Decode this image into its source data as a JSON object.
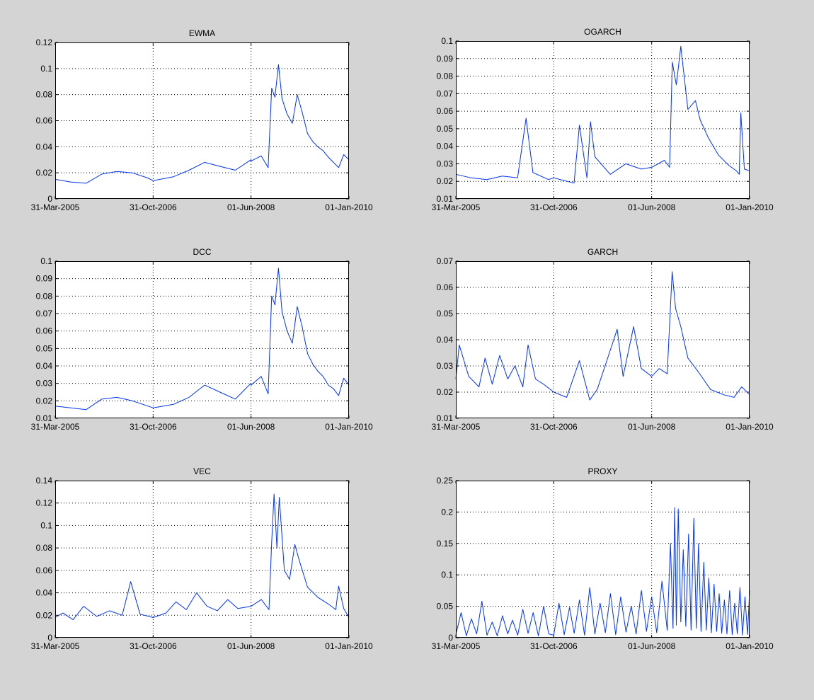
{
  "figure": {
    "background_color": "#d4d4d4",
    "axes_background_color": "#ffffff",
    "line_color": "#0033ff",
    "grid": true,
    "grid_style": "dotted"
  },
  "chart_data": [
    {
      "type": "line",
      "title": "EWMA",
      "x_tick_labels": [
        "31-Mar-2005",
        "31-Oct-2006",
        "01-Jun-2008",
        "01-Jan-2010"
      ],
      "x_range": [
        "31-Mar-2005",
        "01-Jan-2010"
      ],
      "ylim": [
        0,
        0.12
      ],
      "y_tick_labels": [
        "0",
        "0.02",
        "0.04",
        "0.06",
        "0.08",
        "0.1",
        "0.12"
      ],
      "series": [
        {
          "x": [
            "31-Mar-2005",
            "2005-06-30",
            "2005-09-30",
            "2005-12-31",
            "2006-03-31",
            "2006-06-30",
            "2006-09-30",
            "31-Oct-2006",
            "2007-02-28",
            "2007-05-31",
            "2007-08-31",
            "2007-11-30",
            "2008-02-29",
            "2008-05-31",
            "01-Jun-2008",
            "2008-07-31",
            "2008-09-10",
            "2008-10-01",
            "2008-10-20",
            "2008-11-10",
            "2008-12-01",
            "2008-12-31",
            "2009-01-31",
            "2009-03-01",
            "2009-03-31",
            "2009-05-01",
            "2009-06-01",
            "2009-07-01",
            "2009-08-01",
            "2009-09-01",
            "2009-10-01",
            "2009-11-01",
            "2009-12-01",
            "01-Jan-2010"
          ],
          "y": [
            0.015,
            0.013,
            0.012,
            0.019,
            0.021,
            0.02,
            0.016,
            0.014,
            0.017,
            0.022,
            0.028,
            0.025,
            0.022,
            0.03,
            0.029,
            0.033,
            0.024,
            0.085,
            0.078,
            0.103,
            0.077,
            0.065,
            0.058,
            0.08,
            0.066,
            0.05,
            0.044,
            0.04,
            0.037,
            0.032,
            0.028,
            0.024,
            0.034,
            0.03
          ]
        }
      ]
    },
    {
      "type": "line",
      "title": "OGARCH",
      "x_tick_labels": [
        "31-Mar-2005",
        "31-Oct-2006",
        "01-Jun-2008",
        "01-Jan-2010"
      ],
      "x_range": [
        "31-Mar-2005",
        "01-Jan-2010"
      ],
      "ylim": [
        0.01,
        0.1
      ],
      "y_tick_labels": [
        "0.01",
        "0.02",
        "0.03",
        "0.04",
        "0.05",
        "0.06",
        "0.07",
        "0.08",
        "0.09",
        "0.1"
      ],
      "series": [
        {
          "x": [
            "31-Mar-2005",
            "2005-06-30",
            "2005-09-30",
            "2005-12-31",
            "2006-03-31",
            "2006-05-20",
            "2006-06-30",
            "2006-09-30",
            "31-Oct-2006",
            "2007-02-28",
            "2007-04-01",
            "2007-05-15",
            "2007-06-05",
            "2007-07-01",
            "2007-09-30",
            "2007-12-31",
            "2008-03-31",
            "01-Jun-2008",
            "2008-08-15",
            "2008-09-15",
            "2008-10-01",
            "2008-10-25",
            "2008-11-20",
            "2009-01-01",
            "2009-02-15",
            "2009-03-15",
            "2009-05-01",
            "2009-07-01",
            "2009-09-01",
            "2009-10-15",
            "2009-11-01",
            "2009-11-10",
            "2009-12-01",
            "01-Jan-2010"
          ],
          "y": [
            0.024,
            0.022,
            0.021,
            0.023,
            0.022,
            0.056,
            0.025,
            0.021,
            0.022,
            0.019,
            0.052,
            0.022,
            0.054,
            0.034,
            0.024,
            0.03,
            0.027,
            0.028,
            0.032,
            0.028,
            0.088,
            0.075,
            0.097,
            0.061,
            0.066,
            0.055,
            0.045,
            0.035,
            0.029,
            0.026,
            0.024,
            0.059,
            0.027,
            0.026
          ]
        }
      ]
    },
    {
      "type": "line",
      "title": "DCC",
      "x_tick_labels": [
        "31-Mar-2005",
        "31-Oct-2006",
        "01-Jun-2008",
        "01-Jan-2010"
      ],
      "x_range": [
        "31-Mar-2005",
        "01-Jan-2010"
      ],
      "ylim": [
        0.01,
        0.1
      ],
      "y_tick_labels": [
        "0.01",
        "0.02",
        "0.03",
        "0.04",
        "0.05",
        "0.06",
        "0.07",
        "0.08",
        "0.09",
        "0.1"
      ],
      "series": [
        {
          "x": [
            "31-Mar-2005",
            "2005-06-30",
            "2005-09-30",
            "2005-12-31",
            "2006-03-31",
            "2006-06-30",
            "2006-09-30",
            "31-Oct-2006",
            "2007-02-28",
            "2007-05-31",
            "2007-08-31",
            "2007-11-30",
            "2008-02-29",
            "2008-05-31",
            "01-Jun-2008",
            "2008-07-31",
            "2008-09-10",
            "2008-10-01",
            "2008-10-20",
            "2008-11-10",
            "2008-12-01",
            "2008-12-31",
            "2009-01-31",
            "2009-03-01",
            "2009-03-31",
            "2009-05-01",
            "2009-06-01",
            "2009-07-01",
            "2009-08-01",
            "2009-09-01",
            "2009-10-01",
            "2009-11-01",
            "2009-12-01",
            "01-Jan-2010"
          ],
          "y": [
            0.017,
            0.016,
            0.015,
            0.021,
            0.022,
            0.02,
            0.017,
            0.016,
            0.018,
            0.022,
            0.029,
            0.025,
            0.021,
            0.03,
            0.029,
            0.034,
            0.024,
            0.08,
            0.075,
            0.096,
            0.071,
            0.06,
            0.053,
            0.074,
            0.062,
            0.047,
            0.041,
            0.037,
            0.034,
            0.029,
            0.027,
            0.023,
            0.033,
            0.029
          ]
        }
      ]
    },
    {
      "type": "line",
      "title": "GARCH",
      "x_tick_labels": [
        "31-Mar-2005",
        "31-Oct-2006",
        "01-Jun-2008",
        "01-Jan-2010"
      ],
      "x_range": [
        "31-Mar-2005",
        "01-Jan-2010"
      ],
      "ylim": [
        0.01,
        0.07
      ],
      "y_tick_labels": [
        "0.01",
        "0.02",
        "0.03",
        "0.04",
        "0.05",
        "0.06",
        "0.07"
      ],
      "series": [
        {
          "x": [
            "31-Mar-2005",
            "2005-04-20",
            "2005-06-15",
            "2005-08-15",
            "2005-09-20",
            "2005-11-01",
            "2005-12-15",
            "2006-02-01",
            "2006-03-15",
            "2006-05-01",
            "2006-06-01",
            "2006-07-15",
            "2006-09-01",
            "31-Oct-2006",
            "2007-01-15",
            "2007-04-01",
            "2007-06-01",
            "2007-07-15",
            "2007-09-15",
            "2007-11-10",
            "2007-12-15",
            "2008-02-15",
            "2008-04-01",
            "01-Jun-2008",
            "2008-07-15",
            "2008-09-01",
            "2008-09-30",
            "2008-10-20",
            "2008-11-20",
            "2009-01-01",
            "2009-03-01",
            "2009-05-15",
            "2009-08-01",
            "2009-10-01",
            "2009-11-15",
            "01-Jan-2010"
          ],
          "y": [
            0.025,
            0.038,
            0.026,
            0.022,
            0.033,
            0.023,
            0.034,
            0.025,
            0.03,
            0.022,
            0.038,
            0.025,
            0.023,
            0.02,
            0.018,
            0.032,
            0.017,
            0.021,
            0.033,
            0.044,
            0.026,
            0.045,
            0.029,
            0.026,
            0.029,
            0.027,
            0.066,
            0.052,
            0.045,
            0.033,
            0.028,
            0.021,
            0.019,
            0.018,
            0.022,
            0.019
          ]
        }
      ]
    },
    {
      "type": "line",
      "title": "VEC",
      "x_tick_labels": [
        "31-Mar-2005",
        "31-Oct-2006",
        "01-Jun-2008",
        "01-Jan-2010"
      ],
      "x_range": [
        "31-Mar-2005",
        "01-Jan-2010"
      ],
      "ylim": [
        0,
        0.14
      ],
      "y_tick_labels": [
        "0",
        "0.02",
        "0.04",
        "0.06",
        "0.08",
        "0.1",
        "0.12",
        "0.14"
      ],
      "series": [
        {
          "x": [
            "31-Mar-2005",
            "2005-05-15",
            "2005-07-15",
            "2005-09-15",
            "2005-12-01",
            "2006-02-15",
            "2006-05-01",
            "2006-06-20",
            "2006-08-15",
            "31-Oct-2006",
            "2007-01-15",
            "2007-03-15",
            "2007-05-15",
            "2007-07-15",
            "2007-09-15",
            "2007-11-15",
            "2008-01-15",
            "2008-03-15",
            "01-Jun-2008",
            "2008-08-01",
            "2008-09-15",
            "2008-10-01",
            "2008-10-15",
            "2008-11-01",
            "2008-11-15",
            "2008-12-15",
            "2009-01-15",
            "2009-02-15",
            "2009-03-15",
            "2009-05-01",
            "2009-07-01",
            "2009-09-01",
            "2009-10-15",
            "2009-11-01",
            "2009-12-01",
            "01-Jan-2010"
          ],
          "y": [
            0.018,
            0.022,
            0.016,
            0.028,
            0.019,
            0.024,
            0.02,
            0.05,
            0.021,
            0.018,
            0.022,
            0.032,
            0.025,
            0.04,
            0.028,
            0.024,
            0.034,
            0.026,
            0.028,
            0.034,
            0.025,
            0.085,
            0.128,
            0.08,
            0.125,
            0.06,
            0.052,
            0.083,
            0.068,
            0.045,
            0.036,
            0.03,
            0.025,
            0.046,
            0.026,
            0.018
          ]
        }
      ]
    },
    {
      "type": "line",
      "title": "PROXY",
      "x_tick_labels": [
        "31-Mar-2005",
        "31-Oct-2006",
        "01-Jun-2008",
        "01-Jan-2010"
      ],
      "x_range": [
        "31-Mar-2005",
        "01-Jan-2010"
      ],
      "ylim": [
        0,
        0.25
      ],
      "y_tick_labels": [
        "0",
        "0.05",
        "0.1",
        "0.15",
        "0.2",
        "0.25"
      ],
      "series": [
        {
          "x": [
            "31-Mar-2005",
            "2005-05-01",
            "2005-06-01",
            "2005-07-01",
            "2005-08-01",
            "2005-09-01",
            "2005-10-01",
            "2005-11-01",
            "2005-12-01",
            "2006-01-01",
            "2006-02-01",
            "2006-03-01",
            "2006-04-01",
            "2006-05-01",
            "2006-06-01",
            "2006-07-01",
            "2006-08-01",
            "2006-09-01",
            "2006-10-01",
            "31-Oct-2006",
            "2006-12-01",
            "2007-01-01",
            "2007-02-01",
            "2007-03-01",
            "2007-04-01",
            "2007-05-01",
            "2007-06-01",
            "2007-07-01",
            "2007-08-01",
            "2007-09-01",
            "2007-10-01",
            "2007-11-01",
            "2007-12-01",
            "2008-01-01",
            "2008-02-01",
            "2008-03-01",
            "2008-04-01",
            "2008-05-01",
            "01-Jun-2008",
            "2008-07-01",
            "2008-08-01",
            "2008-09-01",
            "2008-09-20",
            "2008-10-05",
            "2008-10-15",
            "2008-10-25",
            "2008-11-05",
            "2008-11-20",
            "2008-12-05",
            "2008-12-20",
            "2009-01-05",
            "2009-01-20",
            "2009-02-05",
            "2009-02-20",
            "2009-03-05",
            "2009-03-20",
            "2009-04-05",
            "2009-04-20",
            "2009-05-05",
            "2009-05-20",
            "2009-06-05",
            "2009-06-20",
            "2009-07-05",
            "2009-07-20",
            "2009-08-05",
            "2009-08-20",
            "2009-09-05",
            "2009-09-20",
            "2009-10-05",
            "2009-10-20",
            "2009-11-05",
            "2009-11-20",
            "2009-12-05",
            "2009-12-20",
            "01-Jan-2010"
          ],
          "y": [
            0.005,
            0.04,
            0.003,
            0.03,
            0.006,
            0.058,
            0.004,
            0.025,
            0.003,
            0.035,
            0.006,
            0.028,
            0.004,
            0.045,
            0.007,
            0.04,
            0.003,
            0.05,
            0.006,
            0.004,
            0.055,
            0.005,
            0.048,
            0.007,
            0.06,
            0.004,
            0.08,
            0.006,
            0.055,
            0.008,
            0.07,
            0.005,
            0.065,
            0.009,
            0.05,
            0.006,
            0.075,
            0.01,
            0.065,
            0.008,
            0.09,
            0.012,
            0.15,
            0.015,
            0.207,
            0.02,
            0.205,
            0.025,
            0.14,
            0.018,
            0.165,
            0.012,
            0.19,
            0.015,
            0.15,
            0.01,
            0.12,
            0.012,
            0.095,
            0.008,
            0.085,
            0.01,
            0.07,
            0.007,
            0.06,
            0.006,
            0.075,
            0.005,
            0.055,
            0.006,
            0.08,
            0.004,
            0.065,
            0.005,
            0.075
          ]
        }
      ]
    }
  ]
}
